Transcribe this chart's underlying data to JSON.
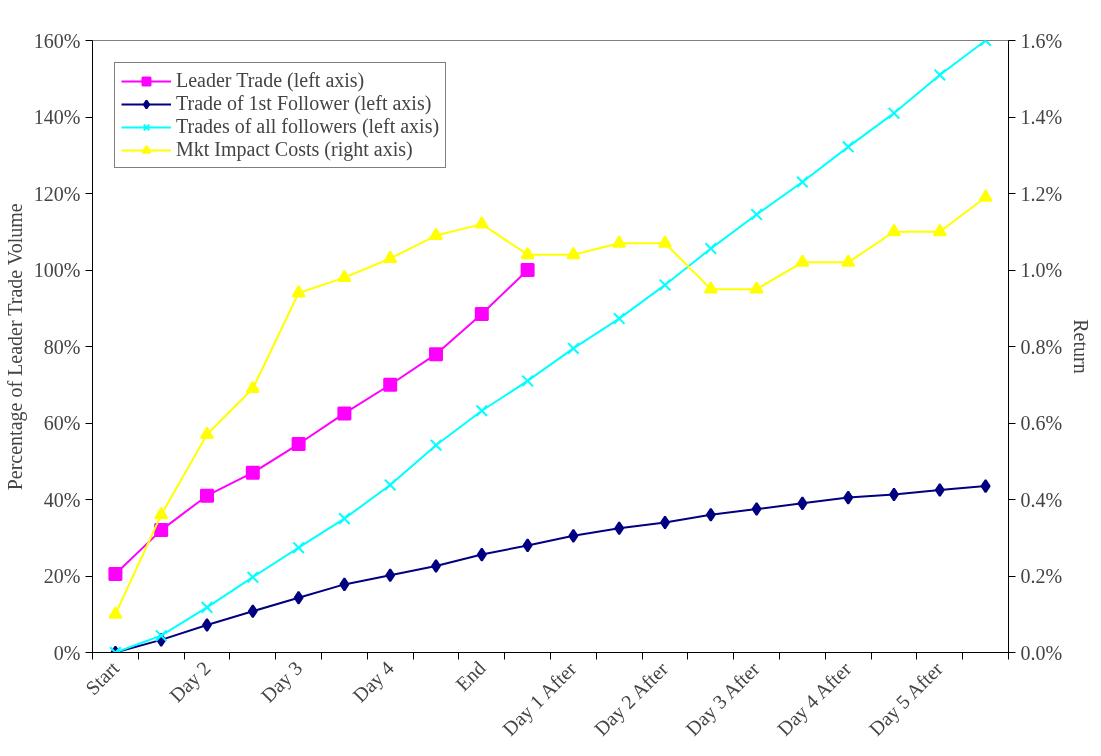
{
  "chart_data": {
    "type": "line",
    "ylabel": "Percentage of Leader Trade Volume",
    "y2label": "Return",
    "categories": [
      "Start",
      null,
      "Day 2",
      null,
      "Day 3",
      null,
      "Day 4",
      null,
      "End",
      null,
      "Day 1 After",
      null,
      "Day 2 After",
      null,
      "Day 3 After",
      null,
      "Day 4 After",
      null,
      "Day 5 After",
      null
    ],
    "series": [
      {
        "name": "Leader Trade (left axis)",
        "color": "#ff00ff",
        "marker": "square",
        "values": [
          20.5,
          32,
          41,
          47,
          54.5,
          62.5,
          70,
          78,
          88.5,
          100,
          null,
          null,
          null,
          null,
          null,
          null,
          null,
          null,
          null,
          null
        ]
      },
      {
        "name": "Trade of 1st Follower (left axis)",
        "color": "#000080",
        "marker": "diamond",
        "values": [
          0,
          3.3,
          7.2,
          10.8,
          14.3,
          17.8,
          20.2,
          22.6,
          25.6,
          28,
          30.5,
          32.5,
          34,
          36,
          37.5,
          39,
          40.5,
          41.3,
          42.5,
          43.5
        ]
      },
      {
        "name": "Trades of all followers (left axis)",
        "color": "#00ffff",
        "marker": "cross",
        "values": [
          0,
          4.4,
          11.8,
          19.7,
          27.4,
          35,
          43.8,
          54.2,
          63.2,
          71,
          79.5,
          87.3,
          96.1,
          105.6,
          114.5,
          123,
          132.2,
          141,
          151,
          160
        ]
      },
      {
        "name": "Mkt Impact Costs (right axis)",
        "color": "#ffff00",
        "marker": "triangle",
        "axis": "y2",
        "values": [
          0.1,
          0.36,
          0.57,
          0.69,
          0.94,
          0.98,
          1.03,
          1.09,
          1.12,
          1.04,
          1.04,
          1.07,
          1.07,
          0.95,
          0.95,
          1.02,
          1.02,
          1.1,
          1.1,
          1.19
        ]
      }
    ],
    "ylim": [
      0,
      160
    ],
    "yticks": [
      {
        "value": 0,
        "label": "0%"
      },
      {
        "value": 20,
        "label": "20%"
      },
      {
        "value": 40,
        "label": "40%"
      },
      {
        "value": 60,
        "label": "60%"
      },
      {
        "value": 80,
        "label": "80%"
      },
      {
        "value": 100,
        "label": "100%"
      },
      {
        "value": 120,
        "label": "120%"
      },
      {
        "value": 140,
        "label": "140%"
      },
      {
        "value": 160,
        "label": "160%"
      }
    ],
    "y2lim": [
      0,
      1.6
    ],
    "y2ticks": [
      {
        "value": 0,
        "label": "0.0%"
      },
      {
        "value": 0.2,
        "label": "0.2%"
      },
      {
        "value": 0.4,
        "label": "0.4%"
      },
      {
        "value": 0.6,
        "label": "0.6%"
      },
      {
        "value": 0.8,
        "label": "0.8%"
      },
      {
        "value": 1.0,
        "label": "1.0%"
      },
      {
        "value": 1.2,
        "label": "1.2%"
      },
      {
        "value": 1.4,
        "label": "1.4%"
      },
      {
        "value": 1.6,
        "label": "1.6%"
      }
    ],
    "grid": false,
    "legend": "top left",
    "line_style": "solid"
  }
}
